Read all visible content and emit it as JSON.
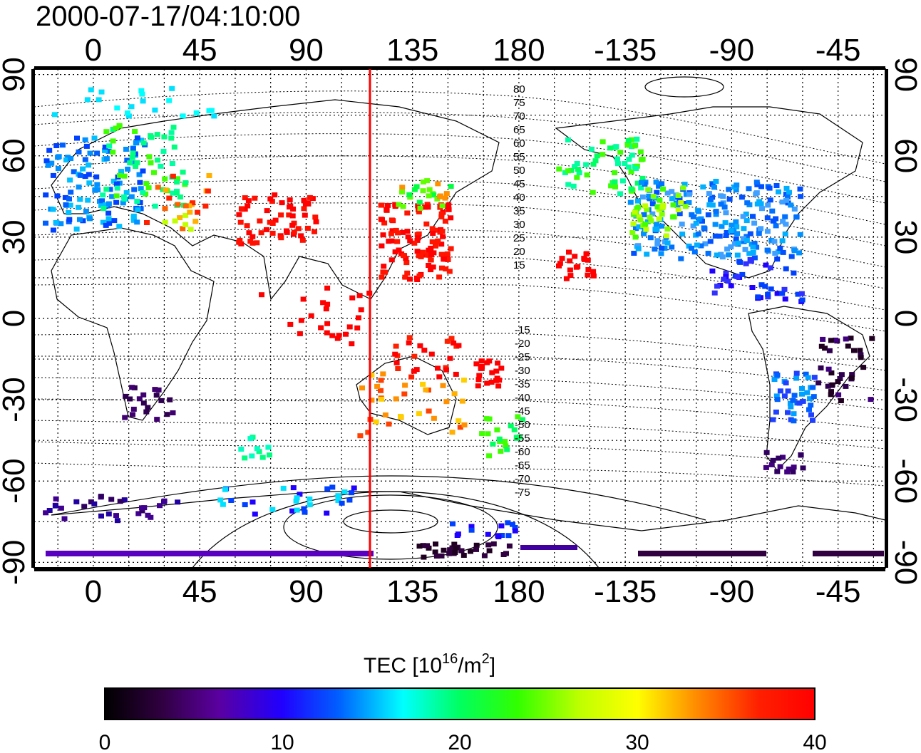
{
  "title": "2000-07-17/04:10:00",
  "map": {
    "top_lon_ticks": [
      "0",
      "45",
      "90",
      "135",
      "180",
      "-135",
      "-90",
      "-45"
    ],
    "bottom_lon_ticks": [
      "0",
      "45",
      "90",
      "135",
      "180",
      "-135",
      "-90",
      "-45"
    ],
    "left_lat_ticks": [
      "90",
      "60",
      "30",
      "0",
      "-30",
      "-60",
      "-90"
    ],
    "right_lat_ticks": [
      "90",
      "60",
      "30",
      "0",
      "-30",
      "-60",
      "-90"
    ],
    "lon_values": [
      0,
      45,
      90,
      135,
      180,
      225,
      270,
      315
    ],
    "lat_values": [
      90,
      60,
      30,
      0,
      -30,
      -60,
      -90
    ],
    "lon_range": [
      -25,
      335
    ],
    "lat_range": [
      -92,
      92
    ],
    "grid": true,
    "vertical_marker_lon": 117,
    "marker_color": "#ff0000",
    "north_contour_labels": [
      "80",
      "75",
      "70",
      "65",
      "60",
      "55",
      "50",
      "45",
      "40",
      "35",
      "30",
      "25",
      "20",
      "15"
    ],
    "south_contour_labels": [
      "-15",
      "-20",
      "-25",
      "-30",
      "-35",
      "-40",
      "-45",
      "-50",
      "-55",
      "-60",
      "-65",
      "-70",
      "-75"
    ]
  },
  "colorbar": {
    "label_main": "TEC  [10",
    "label_exp1": "16",
    "label_mid": "/m",
    "label_exp2": "2",
    "label_end": "]",
    "ticks": [
      "0",
      "10",
      "20",
      "30",
      "40"
    ],
    "range": [
      0,
      40
    ],
    "colors": [
      "#000000",
      "#300040",
      "#5a00a0",
      "#2000ff",
      "#0060ff",
      "#00ffff",
      "#00ff60",
      "#30ff00",
      "#c0ff00",
      "#ffff00",
      "#ff9000",
      "#ff2000",
      "#ff0000"
    ]
  }
}
